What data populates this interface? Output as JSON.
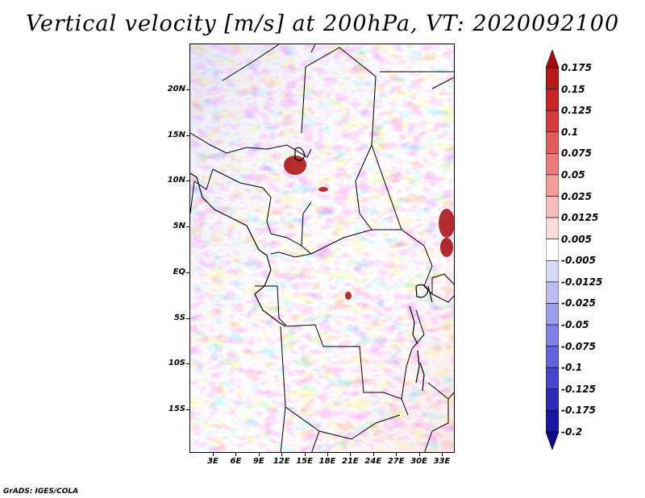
{
  "title": "Vertical velocity [m/s] at 200hPa, VT: 2020092100",
  "credit": "GrADS: IGES/COLA",
  "lat_labels": [
    "20N",
    "15N",
    "10N",
    "5N",
    "EQ",
    "5S",
    "10S",
    "15S"
  ],
  "lon_labels": [
    "3E",
    "6E",
    "9E",
    "12E",
    "15E",
    "18E",
    "21E",
    "24E",
    "27E",
    "30E",
    "33E"
  ],
  "colorbar": {
    "labels": [
      "0.175",
      "0.15",
      "0.125",
      "0.1",
      "0.075",
      "0.05",
      "0.025",
      "0.0125",
      "0.005",
      "-0.005",
      "-0.0125",
      "-0.025",
      "-0.05",
      "-0.075",
      "-0.1",
      "-0.125",
      "-0.175",
      "-0.2"
    ],
    "colors": [
      "#a80a0a",
      "#b81818",
      "#c62626",
      "#d63c3c",
      "#e25c5c",
      "#ec7c7c",
      "#f29c9c",
      "#f7bcbc",
      "#fbdcdc",
      "#ffffff",
      "#dadaf8",
      "#bcbcf3",
      "#9e9eee",
      "#8080e6",
      "#6262dc",
      "#4646cc",
      "#2c2cb6",
      "#1818a0",
      "#0c0c88"
    ]
  },
  "chart_data": {
    "type": "heatmap",
    "title": "Vertical velocity [m/s] at 200hPa, VT: 2020092100",
    "x_ticks": [
      "3E",
      "6E",
      "9E",
      "12E",
      "15E",
      "18E",
      "21E",
      "24E",
      "27E",
      "30E",
      "33E"
    ],
    "y_ticks": [
      "20N",
      "15N",
      "10N",
      "5N",
      "EQ",
      "5S",
      "10S",
      "15S"
    ],
    "legend_levels": [
      0.175,
      0.15,
      0.125,
      0.1,
      0.075,
      0.05,
      0.025,
      0.0125,
      0.005,
      -0.005,
      -0.0125,
      -0.025,
      -0.05,
      -0.075,
      -0.1,
      -0.125,
      -0.175,
      -0.2
    ],
    "legend_placement": "right"
  }
}
